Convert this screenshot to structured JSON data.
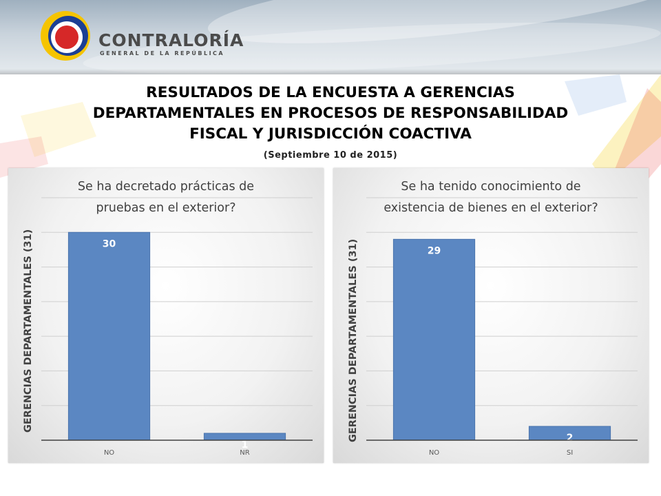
{
  "header": {
    "logo_name": "CONTRALORÍA",
    "logo_sub": "GENERAL DE LA REPÚBLICA",
    "logo_colors": [
      "#f5c400",
      "#1c3f94",
      "#d62828"
    ]
  },
  "title_lines": [
    "RESULTADOS DE LA ENCUESTA A GERENCIAS",
    "DEPARTAMENTALES EN PROCESOS DE RESPONSABILIDAD",
    "FISCAL Y JURISDICCIÓN COACTIVA"
  ],
  "subtitle": "(Septiembre 10 de 2015)",
  "colors": {
    "bar": "#5b87c2",
    "bar_edge": "#4a74ad",
    "label_on_bar": "#ffffff"
  },
  "chart_data": [
    {
      "type": "bar",
      "title_lines": [
        "Se ha decretado prácticas de",
        "pruebas en el exterior?"
      ],
      "ylabel": "GERENCIAS DEPARTAMENTALES  (31)",
      "xlabel": "",
      "categories": [
        "NO",
        "NR"
      ],
      "values": [
        30,
        1
      ],
      "ylim": [
        0,
        35
      ],
      "grid": true,
      "legend": "none"
    },
    {
      "type": "bar",
      "title_lines": [
        "Se ha tenido conocimiento de",
        "existencia de bienes en el exterior?"
      ],
      "ylabel": "GERENCIAS DEPARTAMENTALES  (31)",
      "xlabel": "",
      "categories": [
        "NO",
        "SI"
      ],
      "values": [
        29,
        2
      ],
      "ylim": [
        0,
        35
      ],
      "grid": true,
      "legend": "none"
    }
  ]
}
